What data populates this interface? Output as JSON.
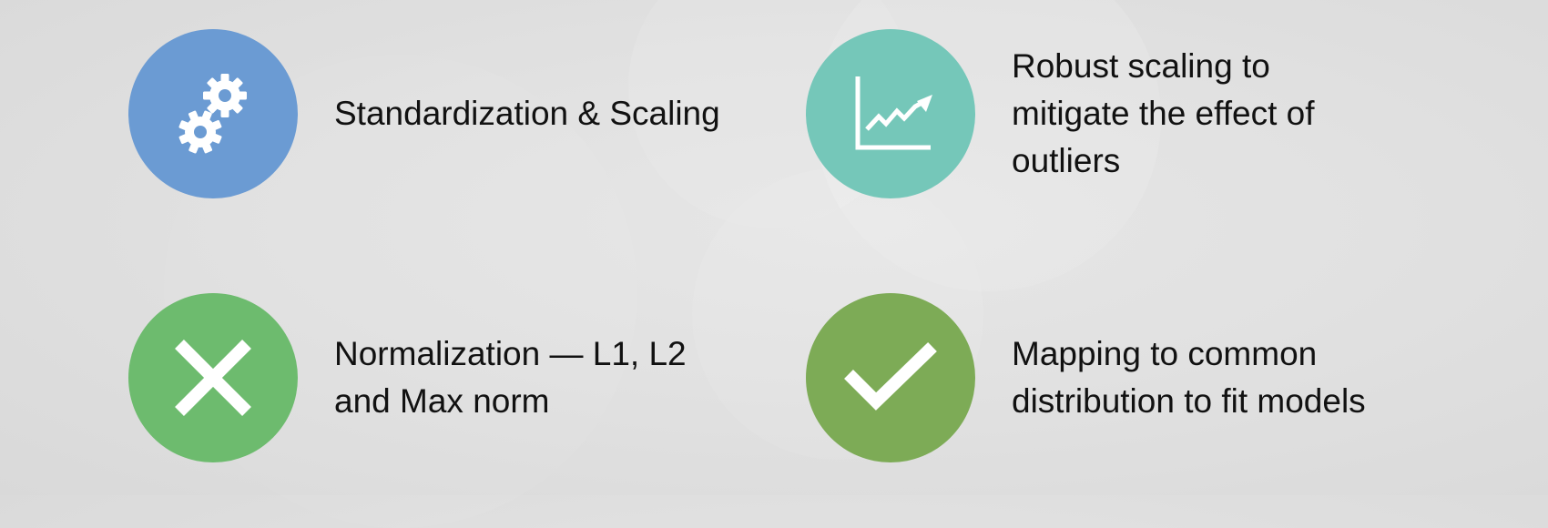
{
  "colors": {
    "blue": "#6b9bd3",
    "teal": "#75c7b9",
    "green": "#6dbb6e",
    "olive": "#7dab56",
    "icon": "#ffffff",
    "text": "#111111"
  },
  "items": [
    {
      "label": "Standardization & Scaling",
      "icon": "gears-icon"
    },
    {
      "label": "Robust scaling to\nmitigate the effect of\noutliers",
      "icon": "trend-chart-icon"
    },
    {
      "label": "Normalization — L1, L2\nand Max norm",
      "icon": "x-mark-icon"
    },
    {
      "label": "Mapping to common\ndistribution to fit models",
      "icon": "checkmark-icon"
    }
  ]
}
